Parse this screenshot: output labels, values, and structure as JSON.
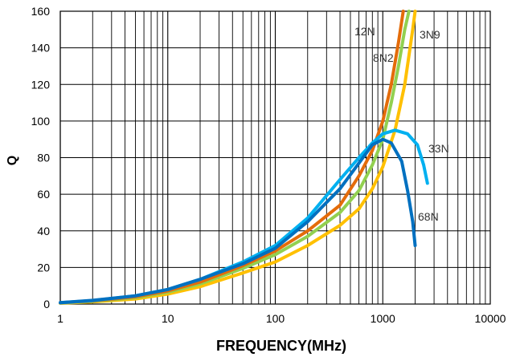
{
  "chart_data": {
    "type": "line",
    "xlabel": "FREQUENCY(MHz)",
    "ylabel": "Q",
    "xscale": "log",
    "xlim": [
      1,
      10000
    ],
    "ylim": [
      0,
      160
    ],
    "grid": true,
    "x_ticks": [
      "1",
      "10",
      "100",
      "1000",
      "10000"
    ],
    "y_ticks": [
      "0",
      "20",
      "40",
      "60",
      "80",
      "100",
      "120",
      "140",
      "160"
    ],
    "series": [
      {
        "name": "3N9",
        "color": "#FFC000",
        "points": [
          [
            1,
            0.5
          ],
          [
            2,
            1.2
          ],
          [
            5,
            2.8
          ],
          [
            10,
            5.5
          ],
          [
            20,
            9.5
          ],
          [
            50,
            17
          ],
          [
            100,
            23
          ],
          [
            200,
            32
          ],
          [
            400,
            43
          ],
          [
            600,
            52
          ],
          [
            800,
            63
          ],
          [
            1000,
            75
          ],
          [
            1300,
            95
          ],
          [
            1600,
            120
          ],
          [
            1900,
            150
          ],
          [
            2000,
            160
          ]
        ]
      },
      {
        "name": "8N2",
        "color": "#92D050",
        "points": [
          [
            1,
            0.6
          ],
          [
            2,
            1.5
          ],
          [
            5,
            3.5
          ],
          [
            10,
            6.5
          ],
          [
            20,
            11
          ],
          [
            50,
            19.5
          ],
          [
            100,
            27
          ],
          [
            200,
            37
          ],
          [
            400,
            50
          ],
          [
            600,
            62
          ],
          [
            800,
            76
          ],
          [
            1000,
            90
          ],
          [
            1200,
            110
          ],
          [
            1400,
            130
          ],
          [
            1600,
            150
          ],
          [
            1750,
            160
          ]
        ]
      },
      {
        "name": "12N",
        "color": "#E46C0A",
        "points": [
          [
            1,
            0.7
          ],
          [
            2,
            1.7
          ],
          [
            5,
            4
          ],
          [
            10,
            7.2
          ],
          [
            20,
            12
          ],
          [
            50,
            21
          ],
          [
            100,
            29
          ],
          [
            200,
            40
          ],
          [
            400,
            54
          ],
          [
            600,
            70
          ],
          [
            800,
            84
          ],
          [
            1000,
            100
          ],
          [
            1200,
            120
          ],
          [
            1400,
            143
          ],
          [
            1550,
            160
          ]
        ]
      },
      {
        "name": "33N",
        "color": "#00B0F0",
        "points": [
          [
            1,
            0.8
          ],
          [
            2,
            1.9
          ],
          [
            5,
            4.5
          ],
          [
            10,
            8
          ],
          [
            20,
            13.5
          ],
          [
            50,
            23
          ],
          [
            100,
            32
          ],
          [
            200,
            47
          ],
          [
            400,
            68
          ],
          [
            600,
            80
          ],
          [
            800,
            88
          ],
          [
            1000,
            93
          ],
          [
            1300,
            95
          ],
          [
            1700,
            93
          ],
          [
            2100,
            87
          ],
          [
            2400,
            76
          ],
          [
            2600,
            66
          ]
        ]
      },
      {
        "name": "68N",
        "color": "#0070C0",
        "points": [
          [
            1,
            0.8
          ],
          [
            2,
            2
          ],
          [
            5,
            4.5
          ],
          [
            10,
            8
          ],
          [
            20,
            13.5
          ],
          [
            50,
            22
          ],
          [
            100,
            30.5
          ],
          [
            200,
            45
          ],
          [
            400,
            63
          ],
          [
            600,
            77
          ],
          [
            800,
            87
          ],
          [
            1000,
            90
          ],
          [
            1200,
            88
          ],
          [
            1500,
            78
          ],
          [
            1700,
            62
          ],
          [
            1900,
            45
          ],
          [
            2000,
            32
          ]
        ]
      }
    ],
    "series_labels": [
      "12N",
      "3N9",
      "8N2",
      "33N",
      "68N"
    ]
  }
}
